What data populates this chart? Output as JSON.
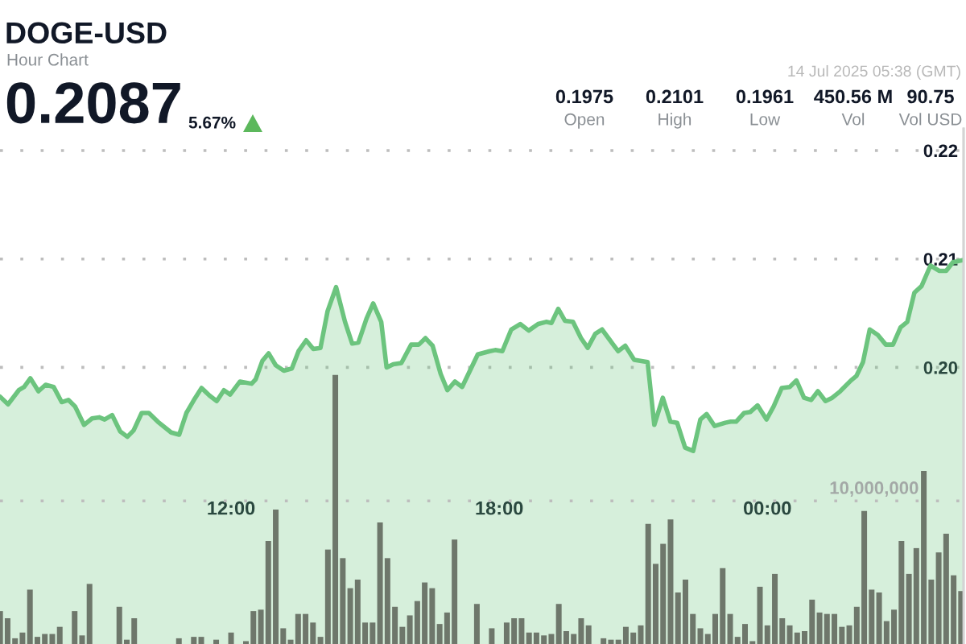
{
  "chart_data": {
    "type": "area",
    "title": "DOGE-USD",
    "subtitle": "Hour Chart",
    "annotations": [
      "0.2087",
      "5.67%",
      "14 Jul 2025 05:38 (GMT)",
      "0.1975",
      "Open",
      "0.2101",
      "High",
      "0.1961",
      "Low",
      "450.56 M",
      "Vol",
      "90.75",
      "Vol USD"
    ],
    "xlim": [
      6.83,
      28.39
    ],
    "xticks": [
      {
        "value": 12,
        "label": "12:00"
      },
      {
        "value": 18,
        "label": "18:00"
      },
      {
        "value": 24,
        "label": "00:00"
      }
    ],
    "ylim": [
      0.1745,
      0.222
    ],
    "yticks": [
      {
        "value": 0.2,
        "label": "0.20"
      },
      {
        "value": 0.21,
        "label": "0.21"
      },
      {
        "value": 0.22,
        "label": "0.22"
      }
    ],
    "y2lim": [
      0,
      36000000
    ],
    "y2ticks": [
      {
        "value": 10000000,
        "label": "10,000,000"
      }
    ],
    "grid": "y",
    "series": [
      {
        "color": "#6cc47e",
        "x": [
          6.83,
          7.01,
          7.25,
          7.37,
          7.51,
          7.69,
          7.85,
          8.03,
          8.21,
          8.36,
          8.51,
          8.71,
          8.89,
          9.05,
          9.17,
          9.34,
          9.52,
          9.68,
          9.82,
          10.0,
          10.16,
          10.36,
          10.66,
          10.84,
          11.0,
          11.17,
          11.34,
          11.52,
          11.68,
          11.84,
          11.98,
          12.2,
          12.46,
          12.55,
          12.7,
          12.84,
          13.0,
          13.18,
          13.36,
          13.51,
          13.68,
          13.84,
          14.0,
          14.16,
          14.35,
          14.55,
          14.71,
          14.85,
          15.03,
          15.18,
          15.36,
          15.48,
          15.63,
          15.81,
          16.03,
          16.2,
          16.35,
          16.51,
          16.69,
          16.84,
          17.01,
          17.17,
          17.52,
          17.79,
          17.91,
          18.07,
          18.27,
          18.47,
          18.66,
          18.87,
          19.05,
          19.17,
          19.32,
          19.47,
          19.65,
          19.83,
          19.98,
          20.15,
          20.3,
          20.48,
          20.66,
          20.82,
          21.02,
          21.32,
          21.47,
          21.66,
          21.83,
          21.98,
          22.16,
          22.34,
          22.5,
          22.64,
          22.82,
          23.06,
          23.18,
          23.3,
          23.48,
          23.62,
          23.78,
          23.98,
          24.14,
          24.32,
          24.5,
          24.65,
          24.82,
          24.98,
          25.13,
          25.3,
          25.45,
          25.63,
          25.87,
          25.99,
          26.14,
          26.29,
          26.47,
          26.65,
          26.81,
          26.98,
          27.13,
          27.29,
          27.45,
          27.65,
          27.85,
          28.0,
          28.15,
          28.39
        ],
        "values": [
          0.1973,
          0.1966,
          0.1979,
          0.1982,
          0.199,
          0.1978,
          0.1984,
          0.1982,
          0.1968,
          0.197,
          0.1964,
          0.1947,
          0.1953,
          0.1954,
          0.1952,
          0.1956,
          0.1941,
          0.1936,
          0.1942,
          0.1958,
          0.1958,
          0.195,
          0.194,
          0.1938,
          0.1958,
          0.197,
          0.1981,
          0.1974,
          0.1969,
          0.1979,
          0.1975,
          0.1987,
          0.1985,
          0.1989,
          0.2006,
          0.2013,
          0.2002,
          0.1997,
          0.1999,
          0.2015,
          0.2025,
          0.2017,
          0.2018,
          0.2052,
          0.2074,
          0.2042,
          0.2022,
          0.2023,
          0.2045,
          0.2059,
          0.2042,
          0.2,
          0.2003,
          0.2004,
          0.2021,
          0.2021,
          0.2027,
          0.202,
          0.1994,
          0.1979,
          0.1987,
          0.1982,
          0.2012,
          0.2015,
          0.2016,
          0.2015,
          0.2035,
          0.204,
          0.2034,
          0.204,
          0.2042,
          0.2041,
          0.2054,
          0.2043,
          0.2042,
          0.2027,
          0.2018,
          0.2031,
          0.2035,
          0.2025,
          0.2015,
          0.202,
          0.2007,
          0.2005,
          0.1947,
          0.1972,
          0.195,
          0.1949,
          0.1926,
          0.1923,
          0.1952,
          0.1957,
          0.1946,
          0.1949,
          0.195,
          0.195,
          0.1958,
          0.1959,
          0.1965,
          0.1952,
          0.1964,
          0.1981,
          0.1982,
          0.1988,
          0.1972,
          0.197,
          0.1978,
          0.1969,
          0.1972,
          0.1978,
          0.1988,
          0.1992,
          0.2005,
          0.2035,
          0.203,
          0.2021,
          0.2021,
          0.2037,
          0.2042,
          0.2069,
          0.2075,
          0.2094,
          0.2089,
          0.2089,
          0.2097,
          0.2099
        ]
      },
      {
        "type": "bar",
        "axis": "y2",
        "color": "#6e776b",
        "x": [
          6.833,
          7,
          7.167,
          7.333,
          7.5,
          7.667,
          7.833,
          8,
          8.167,
          8.333,
          8.5,
          8.667,
          8.833,
          9,
          9.167,
          9.333,
          9.5,
          9.667,
          9.833,
          10,
          10.167,
          10.333,
          10.5,
          10.667,
          10.833,
          11,
          11.167,
          11.333,
          11.5,
          11.667,
          11.833,
          12,
          12.167,
          12.333,
          12.5,
          12.667,
          12.833,
          13,
          13.167,
          13.333,
          13.5,
          13.667,
          13.833,
          14,
          14.167,
          14.333,
          14.5,
          14.667,
          14.833,
          15,
          15.167,
          15.333,
          15.5,
          15.667,
          15.833,
          16,
          16.167,
          16.333,
          16.5,
          16.667,
          16.833,
          17,
          17.167,
          17.333,
          17.5,
          17.667,
          17.833,
          18,
          18.167,
          18.333,
          18.5,
          18.667,
          18.833,
          19,
          19.167,
          19.333,
          19.5,
          19.667,
          19.833,
          20,
          20.167,
          20.333,
          20.5,
          20.667,
          20.833,
          21,
          21.167,
          21.333,
          21.5,
          21.667,
          21.833,
          22,
          22.167,
          22.333,
          22.5,
          22.667,
          22.833,
          23,
          23.167,
          23.333,
          23.5,
          23.667,
          23.833,
          24,
          24.167,
          24.333,
          24.5,
          24.667,
          24.833,
          25,
          25.167,
          25.333,
          25.5,
          25.667,
          25.833,
          26,
          26.167,
          26.333,
          26.5,
          26.667,
          26.833,
          27,
          27.167,
          27.333,
          27.5,
          27.667,
          27.833,
          28,
          28.167,
          28.333
        ],
        "values": [
          2300000,
          1800000,
          400000,
          800000,
          3800000,
          500000,
          700000,
          700000,
          1200000,
          null,
          2300000,
          600000,
          4200000,
          null,
          null,
          null,
          2600000,
          300000,
          1800000,
          null,
          null,
          null,
          null,
          null,
          400000,
          null,
          500000,
          500000,
          null,
          300000,
          null,
          800000,
          null,
          200000,
          2300000,
          2400000,
          7200000,
          9400000,
          1100000,
          300000,
          2100000,
          2100000,
          1500000,
          500000,
          6600000,
          18800000,
          6000000,
          3900000,
          4500000,
          1500000,
          1500000,
          8500000,
          6000000,
          2600000,
          1200000,
          2000000,
          3000000,
          4300000,
          3900000,
          1400000,
          2200000,
          7300000,
          null,
          null,
          2800000,
          null,
          1100000,
          null,
          1500000,
          1800000,
          1800000,
          800000,
          800000,
          600000,
          700000,
          2800000,
          900000,
          700000,
          1800000,
          1300000,
          null,
          400000,
          300000,
          300000,
          1200000,
          800000,
          1300000,
          8400000,
          5600000,
          7000000,
          8700000,
          3600000,
          4500000,
          2100000,
          1100000,
          700000,
          2100000,
          5300000,
          2100000,
          500000,
          1400000,
          200000,
          4000000,
          1300000,
          4900000,
          1800000,
          1300000,
          800000,
          900000,
          3100000,
          2200000,
          2100000,
          2100000,
          1200000,
          1300000,
          2600000,
          9300000,
          3800000,
          3600000,
          1600000,
          2400000,
          7200000,
          4900000,
          6700000,
          12100000,
          4500000,
          6400000,
          7700000,
          4800000,
          3700000
        ]
      }
    ]
  }
}
